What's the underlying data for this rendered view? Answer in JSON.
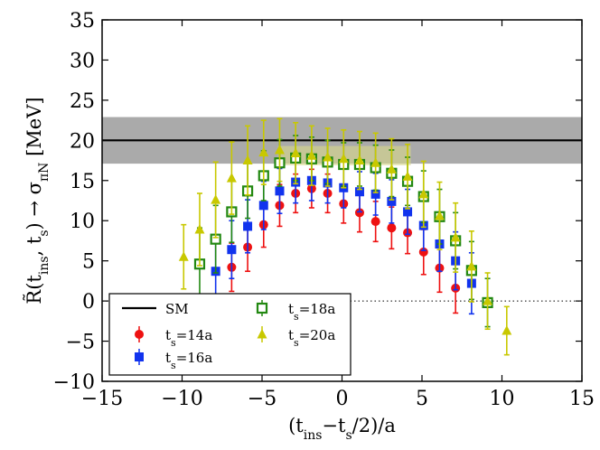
{
  "chart_data": {
    "type": "scatter",
    "xlabel": "(t_ins−t_s/2)/a",
    "ylabel": "R̃(t_ins, t_s) → σ_πN [MeV]",
    "xlim": [
      -15,
      15
    ],
    "ylim": [
      -10,
      35
    ],
    "x_ticks": [
      -15,
      -10,
      -5,
      0,
      5,
      10,
      15
    ],
    "y_ticks": [
      -10,
      -5,
      0,
      5,
      10,
      15,
      20,
      25,
      30,
      35
    ],
    "x_tick_labels": [
      "−15",
      "−10",
      "−5",
      "0",
      "5",
      "10",
      "15"
    ],
    "y_tick_labels": [
      "−10",
      "−5",
      "0",
      "5",
      "10",
      "15",
      "20",
      "25",
      "30",
      "35"
    ],
    "grid": false,
    "legend_position": "lower-left",
    "sm_band": {
      "label": "SM",
      "value": 20.0,
      "low": 17.1,
      "high": 22.9,
      "color": "#000000",
      "band_color": "#aaaaaa"
    },
    "fit_band": {
      "x_range": [
        -4,
        4.3
      ],
      "low": 16.9,
      "high": 19.3,
      "color": "#d9d98a"
    },
    "zero_line": {
      "y": 0,
      "style": "dotted"
    },
    "series": [
      {
        "name": "t_s=14a",
        "color": "#ee1111",
        "marker": "circle",
        "points": [
          [
            -6.9,
            4.2,
            3.0
          ],
          [
            -5.9,
            6.7,
            3.0
          ],
          [
            -4.9,
            9.5,
            2.8
          ],
          [
            -3.9,
            11.9,
            2.6
          ],
          [
            -2.9,
            13.4,
            2.4
          ],
          [
            -1.9,
            14.0,
            2.4
          ],
          [
            -0.9,
            13.4,
            2.4
          ],
          [
            0.1,
            12.1,
            2.4
          ],
          [
            1.1,
            11.0,
            2.4
          ],
          [
            2.1,
            9.9,
            2.5
          ],
          [
            3.1,
            9.1,
            2.6
          ],
          [
            4.1,
            8.5,
            2.6
          ],
          [
            5.1,
            6.1,
            2.8
          ],
          [
            6.1,
            4.1,
            3.0
          ],
          [
            7.1,
            1.6,
            3.1
          ]
        ]
      },
      {
        "name": "t_s=16a",
        "color": "#1133ee",
        "marker": "square",
        "points": [
          [
            -7.9,
            3.7,
            4.0
          ],
          [
            -6.9,
            6.4,
            3.6
          ],
          [
            -5.9,
            9.3,
            3.3
          ],
          [
            -4.9,
            11.9,
            3.0
          ],
          [
            -3.9,
            13.7,
            2.8
          ],
          [
            -2.9,
            14.8,
            2.6
          ],
          [
            -1.9,
            15.0,
            2.5
          ],
          [
            -0.9,
            14.7,
            2.5
          ],
          [
            0.1,
            14.1,
            2.5
          ],
          [
            1.1,
            13.6,
            2.5
          ],
          [
            2.1,
            13.3,
            2.6
          ],
          [
            3.1,
            12.4,
            2.7
          ],
          [
            4.1,
            11.1,
            2.8
          ],
          [
            5.1,
            9.4,
            3.1
          ],
          [
            6.1,
            7.1,
            3.4
          ],
          [
            7.1,
            5.0,
            3.6
          ],
          [
            8.1,
            2.2,
            3.8
          ]
        ]
      },
      {
        "name": "t_s=18a",
        "color": "#228811",
        "marker": "square-open",
        "points": [
          [
            -8.9,
            4.6,
            4.5
          ],
          [
            -7.9,
            7.7,
            4.2
          ],
          [
            -6.9,
            11.1,
            3.8
          ],
          [
            -5.9,
            13.7,
            3.4
          ],
          [
            -4.9,
            15.6,
            3.1
          ],
          [
            -3.9,
            17.2,
            2.9
          ],
          [
            -2.9,
            17.8,
            2.8
          ],
          [
            -1.9,
            17.7,
            2.7
          ],
          [
            -0.9,
            17.3,
            2.7
          ],
          [
            0.1,
            17.0,
            2.7
          ],
          [
            1.1,
            17.0,
            2.7
          ],
          [
            2.1,
            16.6,
            2.8
          ],
          [
            3.1,
            15.9,
            2.9
          ],
          [
            4.1,
            14.9,
            3.0
          ],
          [
            5.1,
            13.0,
            3.2
          ],
          [
            6.1,
            10.5,
            3.4
          ],
          [
            7.1,
            7.5,
            3.5
          ],
          [
            8.1,
            3.8,
            3.6
          ],
          [
            9.1,
            -0.2,
            3.0
          ]
        ]
      },
      {
        "name": "t_s=20a",
        "color": "#c8c800",
        "marker": "triangle",
        "points": [
          [
            -9.9,
            5.5,
            4.0
          ],
          [
            -8.9,
            8.9,
            4.5
          ],
          [
            -7.9,
            12.6,
            4.7
          ],
          [
            -6.9,
            15.3,
            4.5
          ],
          [
            -5.9,
            17.5,
            4.3
          ],
          [
            -4.9,
            18.5,
            4.0
          ],
          [
            -3.9,
            18.8,
            3.9
          ],
          [
            -2.9,
            18.4,
            3.8
          ],
          [
            -1.9,
            18.1,
            3.7
          ],
          [
            -0.9,
            17.9,
            3.6
          ],
          [
            0.1,
            17.7,
            3.6
          ],
          [
            1.1,
            17.5,
            3.6
          ],
          [
            2.1,
            17.2,
            3.7
          ],
          [
            3.1,
            16.4,
            3.8
          ],
          [
            4.1,
            15.5,
            4.0
          ],
          [
            5.1,
            13.3,
            4.1
          ],
          [
            6.1,
            10.6,
            4.2
          ],
          [
            7.1,
            7.9,
            4.3
          ],
          [
            8.1,
            4.3,
            4.4
          ],
          [
            9.1,
            0.0,
            3.5
          ],
          [
            10.3,
            -3.7,
            3.0
          ]
        ]
      }
    ],
    "legend": [
      {
        "label": "SM",
        "key": "sm"
      },
      {
        "label": "t_s=14a",
        "key": "s0"
      },
      {
        "label": "t_s=16a",
        "key": "s1"
      },
      {
        "label": "t_s=18a",
        "key": "s2"
      },
      {
        "label": "t_s=20a",
        "key": "s3"
      }
    ]
  }
}
